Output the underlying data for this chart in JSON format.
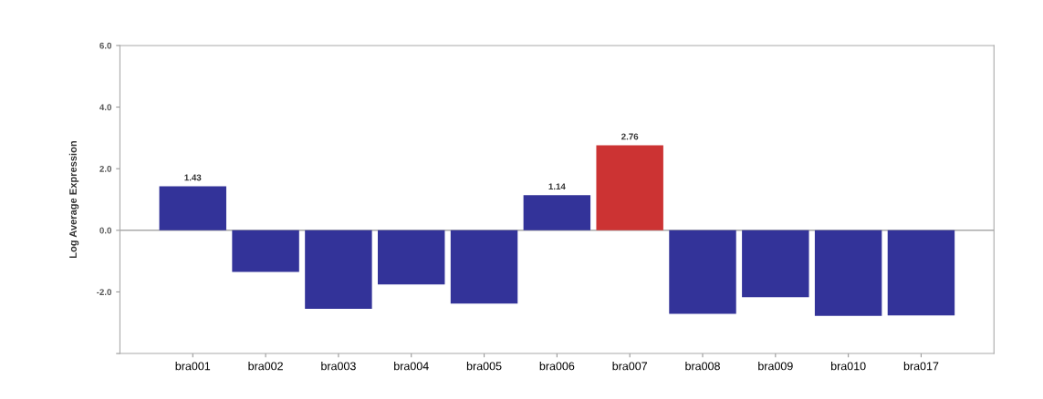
{
  "chart_data": {
    "type": "bar",
    "ylabel": "Log Average Expression",
    "categories": [
      "bra001",
      "bra002",
      "bra003",
      "bra004",
      "bra005",
      "bra006",
      "bra007",
      "bra008",
      "bra009",
      "bra010",
      "bra017"
    ],
    "values": [
      1.43,
      -1.35,
      -2.55,
      -1.76,
      -2.38,
      1.14,
      2.76,
      -2.71,
      -2.17,
      -2.78,
      -2.76
    ],
    "colors": [
      "#333399",
      "#333399",
      "#333399",
      "#333399",
      "#333399",
      "#333399",
      "#cc3333",
      "#333399",
      "#333399",
      "#333399",
      "#333399"
    ],
    "value_labels": [
      "1.43",
      null,
      null,
      null,
      null,
      "1.14",
      "2.76",
      null,
      null,
      null,
      null
    ],
    "ylim": [
      -4,
      6
    ],
    "yticks": [
      {
        "value": -4,
        "label": null
      },
      {
        "value": -2,
        "label": "-2.0"
      },
      {
        "value": 0,
        "label": "0.0"
      },
      {
        "value": 2,
        "label": "2.0"
      },
      {
        "value": 4,
        "label": "4.0"
      },
      {
        "value": 6,
        "label": "6.0"
      }
    ],
    "ref_lines": [
      {
        "axis": "y",
        "value": 0,
        "label": null,
        "color": "#aaaaaa"
      }
    ],
    "grid": false,
    "legend": false
  }
}
